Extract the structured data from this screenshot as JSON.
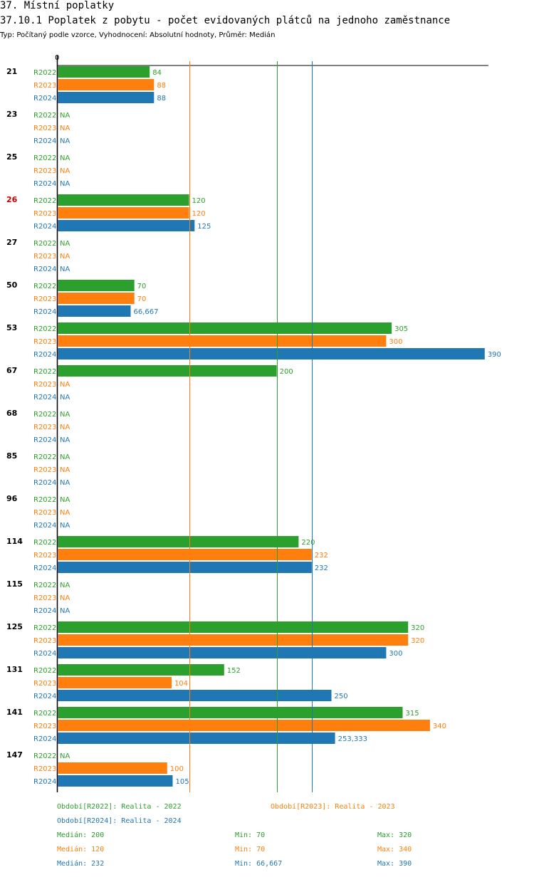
{
  "header": {
    "section": "37. Místní poplatky",
    "title": "37.10.1 Poplatek z pobytu - počet evidovaných plátců na jednoho zaměstnance",
    "subtitle": "Typ: Počítaný podle vzorce, Vyhodnocení: Absolutní hodnoty, Průměr: Medián"
  },
  "colors": {
    "R2022": "#2ca02c",
    "R2023": "#ff7f0e",
    "R2024": "#1f77b4",
    "highlight": "#cc0000"
  },
  "chart_data": {
    "type": "bar",
    "orientation": "horizontal",
    "title": "37.10.1 Poplatek z pobytu - počet evidovaných plátců na jednoho zaměstnance",
    "axis_zero_label": "0",
    "xlim": [
      0,
      405
    ],
    "na_label": "NA",
    "series_names": [
      "R2022",
      "R2023",
      "R2024"
    ],
    "categories": [
      {
        "label": "21",
        "highlight": false,
        "values": [
          84,
          88,
          88
        ],
        "labels": [
          "84",
          "88",
          "88"
        ]
      },
      {
        "label": "23",
        "highlight": false,
        "values": [
          null,
          null,
          null
        ],
        "labels": [
          "NA",
          "NA",
          "NA"
        ]
      },
      {
        "label": "25",
        "highlight": false,
        "values": [
          null,
          null,
          null
        ],
        "labels": [
          "NA",
          "NA",
          "NA"
        ]
      },
      {
        "label": "26",
        "highlight": true,
        "values": [
          120,
          120,
          125
        ],
        "labels": [
          "120",
          "120",
          "125"
        ]
      },
      {
        "label": "27",
        "highlight": false,
        "values": [
          null,
          null,
          null
        ],
        "labels": [
          "NA",
          "NA",
          "NA"
        ]
      },
      {
        "label": "50",
        "highlight": false,
        "values": [
          70,
          70,
          66.667
        ],
        "labels": [
          "70",
          "70",
          "66,667"
        ]
      },
      {
        "label": "53",
        "highlight": false,
        "values": [
          305,
          300,
          390
        ],
        "labels": [
          "305",
          "300",
          "390"
        ]
      },
      {
        "label": "67",
        "highlight": false,
        "values": [
          200,
          null,
          null
        ],
        "labels": [
          "200",
          "NA",
          "NA"
        ]
      },
      {
        "label": "68",
        "highlight": false,
        "values": [
          null,
          null,
          null
        ],
        "labels": [
          "NA",
          "NA",
          "NA"
        ]
      },
      {
        "label": "85",
        "highlight": false,
        "values": [
          null,
          null,
          null
        ],
        "labels": [
          "NA",
          "NA",
          "NA"
        ]
      },
      {
        "label": "96",
        "highlight": false,
        "values": [
          null,
          null,
          null
        ],
        "labels": [
          "NA",
          "NA",
          "NA"
        ]
      },
      {
        "label": "114",
        "highlight": false,
        "values": [
          220,
          232,
          232
        ],
        "labels": [
          "220",
          "232",
          "232"
        ]
      },
      {
        "label": "115",
        "highlight": false,
        "values": [
          null,
          null,
          null
        ],
        "labels": [
          "NA",
          "NA",
          "NA"
        ]
      },
      {
        "label": "125",
        "highlight": false,
        "values": [
          320,
          320,
          300
        ],
        "labels": [
          "320",
          "320",
          "300"
        ]
      },
      {
        "label": "131",
        "highlight": false,
        "values": [
          152,
          104,
          250
        ],
        "labels": [
          "152",
          "104",
          "250"
        ]
      },
      {
        "label": "141",
        "highlight": false,
        "values": [
          315,
          340,
          253.333
        ],
        "labels": [
          "315",
          "340",
          "253,333"
        ]
      },
      {
        "label": "147",
        "highlight": false,
        "values": [
          null,
          100,
          105
        ],
        "labels": [
          "NA",
          "100",
          "105"
        ]
      }
    ],
    "reference_lines": [
      {
        "series": "R2023",
        "value": 120
      },
      {
        "series": "R2022",
        "value": 200
      },
      {
        "series": "R2024",
        "value": 232
      }
    ]
  },
  "legend": {
    "r2022_label": "Období[R2022]: Realita - 2022",
    "r2023_label": "Období[R2023]: Realita - 2023",
    "r2024_label": "Období[R2024]: Realita - 2024",
    "stats": [
      {
        "median": "Medián: 200",
        "min": "Min: 70",
        "max": "Max: 320"
      },
      {
        "median": "Medián: 120",
        "min": "Min: 70",
        "max": "Max: 340"
      },
      {
        "median": "Medián: 232",
        "min": "Min: 66,667",
        "max": "Max: 390"
      }
    ]
  }
}
